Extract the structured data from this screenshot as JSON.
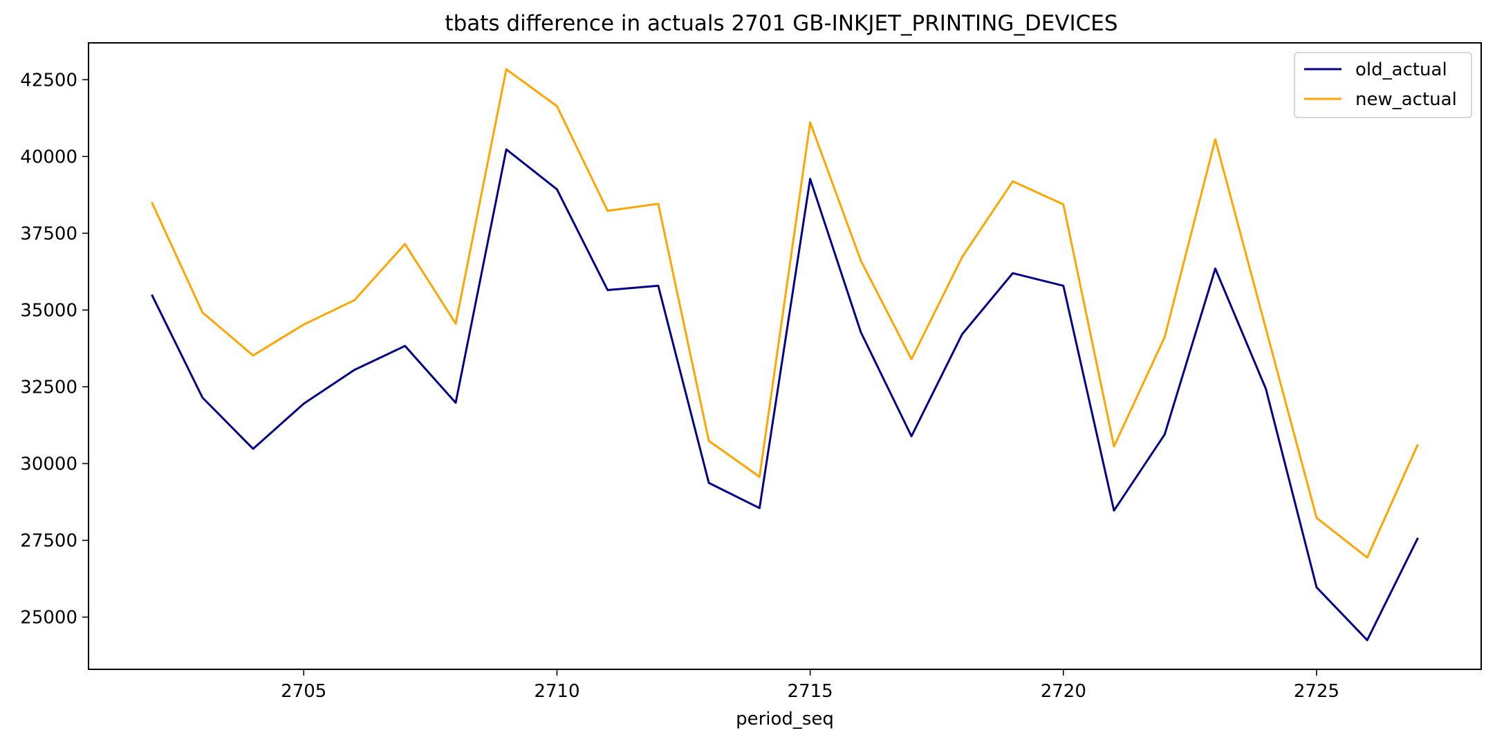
{
  "chart_data": {
    "type": "line",
    "title": "tbats difference in actuals 2701 GB-INKJET_PRINTING_DEVICES",
    "xlabel": "period_seq",
    "ylabel": "",
    "x": [
      2702,
      2703,
      2704,
      2705,
      2706,
      2707,
      2708,
      2709,
      2710,
      2711,
      2712,
      2713,
      2714,
      2715,
      2716,
      2717,
      2718,
      2719,
      2720,
      2721,
      2722,
      2723,
      2724,
      2725,
      2726,
      2727
    ],
    "xlim": [
      2700.75,
      2728.25
    ],
    "ylim": [
      23300,
      43700
    ],
    "xticks": [
      2705,
      2710,
      2715,
      2720,
      2725
    ],
    "yticks": [
      25000,
      27500,
      30000,
      32500,
      35000,
      37500,
      40000,
      42500
    ],
    "xtick_labels": [
      "2705",
      "2710",
      "2715",
      "2720",
      "2725"
    ],
    "ytick_labels": [
      "25000",
      "27500",
      "30000",
      "32500",
      "35000",
      "37500",
      "40000",
      "42500"
    ],
    "grid": false,
    "legend_position": "top-right",
    "series": [
      {
        "name": "old_actual",
        "color": "#00008b",
        "values": [
          35500,
          32150,
          30480,
          31950,
          33050,
          33830,
          31980,
          40230,
          38930,
          35650,
          35790,
          29370,
          28550,
          39270,
          34280,
          30890,
          34210,
          36200,
          35790,
          28470,
          30950,
          36350,
          32430,
          25970,
          24250,
          27580
        ]
      },
      {
        "name": "new_actual",
        "color": "#ffa500",
        "values": [
          38510,
          34920,
          33520,
          34530,
          35320,
          37150,
          34560,
          42840,
          41640,
          38230,
          38460,
          30740,
          29570,
          41110,
          36610,
          33400,
          36720,
          39190,
          38440,
          30560,
          34120,
          40560,
          34390,
          28230,
          26940,
          30630
        ]
      }
    ]
  }
}
